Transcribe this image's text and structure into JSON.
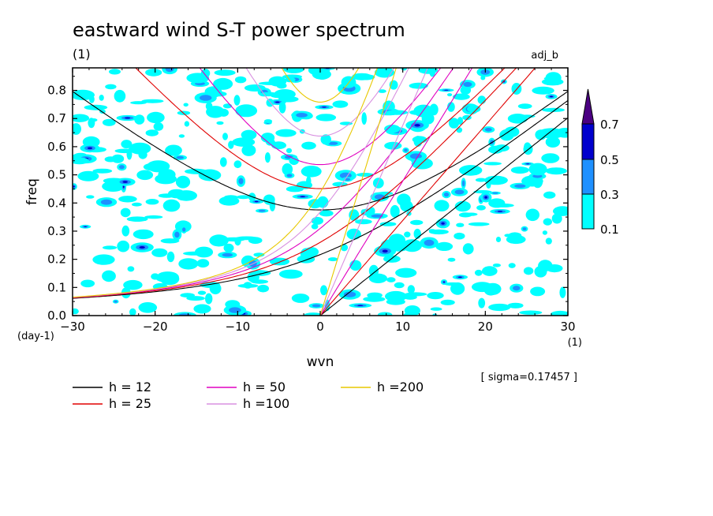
{
  "header": {
    "title": "eastward wind S-T power spectrum",
    "subtitle_left": "(1)",
    "subtitle_right": "adj_b"
  },
  "axes": {
    "xlabel": "wvn",
    "ylabel": "freq",
    "x_unit": "(1)",
    "y_unit": "(day-1)"
  },
  "annotation": "[ sigma=0.17457 ]",
  "colorbar": {
    "levels": [
      "0.1",
      "0.3",
      "0.5",
      "0.7"
    ],
    "colors": [
      "#00ffff",
      "#1e90ff",
      "#0000cd",
      "#4b0082"
    ]
  },
  "legend": [
    {
      "label": "h = 12",
      "color": "#000000"
    },
    {
      "label": "h = 25",
      "color": "#e00000"
    },
    {
      "label": "h = 50",
      "color": "#e000c0"
    },
    {
      "label": "h =100",
      "color": "#d890e0"
    },
    {
      "label": "h =200",
      "color": "#e8c800"
    }
  ],
  "chart_data": {
    "type": "heatmap",
    "title": "eastward wind S-T power spectrum",
    "xlabel": "wvn",
    "ylabel": "freq",
    "xlim": [
      -30,
      30
    ],
    "ylim": [
      0,
      0.88
    ],
    "xticks": [
      "-30",
      "-20",
      "-10",
      "0",
      "10",
      "20",
      "30"
    ],
    "yticks": [
      "0.0",
      "0.1",
      "0.2",
      "0.3",
      "0.4",
      "0.5",
      "0.6",
      "0.7",
      "0.8"
    ],
    "contour_levels": [
      0.1,
      0.3,
      0.5,
      0.7
    ],
    "dispersion_curves": [
      "h = 12",
      "h = 25",
      "h = 50",
      "h =100",
      "h =200"
    ],
    "grid": false,
    "legend_position": "bottom"
  }
}
